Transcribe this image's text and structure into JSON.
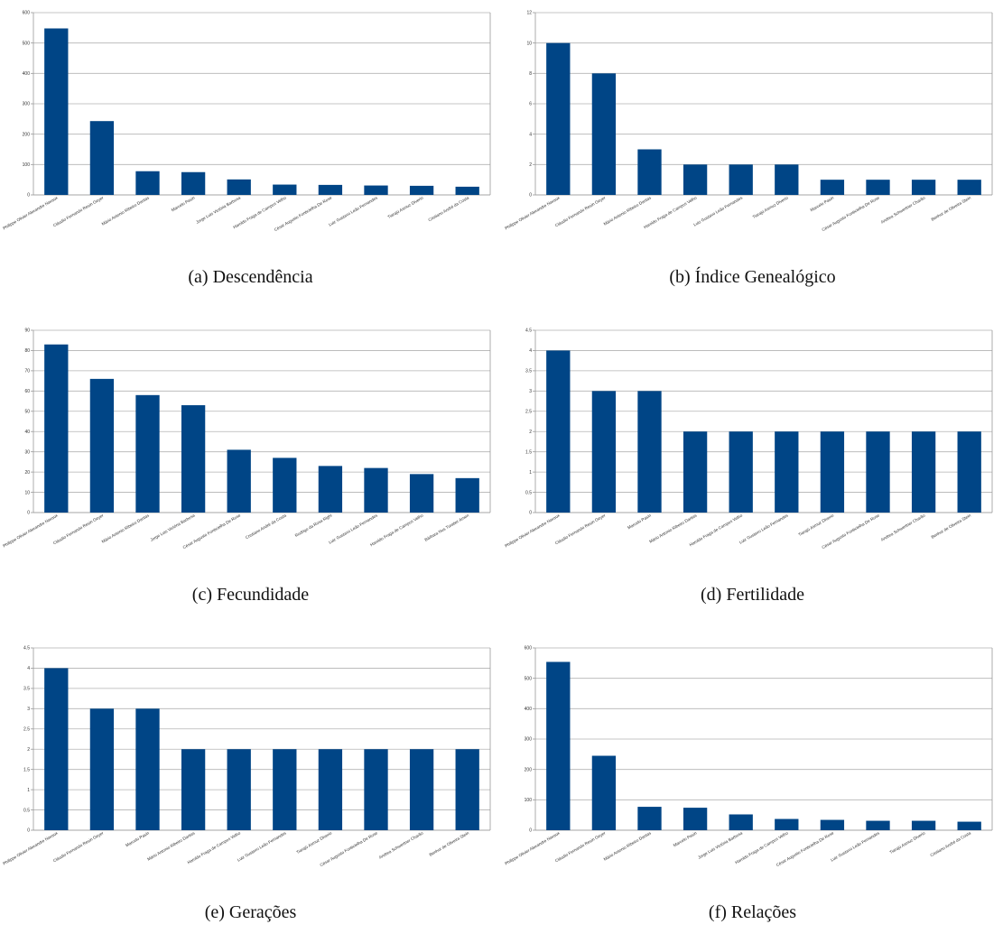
{
  "style": {
    "bar_color": "#004586",
    "grid_color": "#b3b3b3",
    "axis_color": "#999999"
  },
  "chart_data": [
    {
      "type": "bar",
      "caption": "(a) Descendência",
      "categories": [
        "Philippe Olivier Alexandre Navaux",
        "Cláudio Fernando Resin Geyer",
        "Mário Antonio Ribeiro Dantas",
        "Marcelo Pasin",
        "Jorge Luis Victória Barbosa",
        "Haroldo Fraga de Campos Velho",
        "César Augusto Fonticielha De Rose",
        "Luiz Gustavo Leão Fernandes",
        "Tiarajú Asmuz Diverio",
        "Cristiano André da Costa"
      ],
      "values": [
        548,
        243,
        78,
        75,
        51,
        34,
        33,
        31,
        30,
        27
      ],
      "ylim": [
        0,
        600
      ],
      "yticks": [
        0,
        100,
        200,
        300,
        400,
        500,
        600
      ]
    },
    {
      "type": "bar",
      "caption": "(b) Índice Genealógico",
      "categories": [
        "Philippe Olivier Alexandre Navaux",
        "Cláudio Fernando Resin Geyer",
        "Mário Antonio Ribeiro Dantas",
        "Haroldo Fraga de Campos Velho",
        "Luiz Gustavo Leão Fernandes",
        "Tiarajú Asmuz Diverio",
        "Marcelo Pasin",
        "César Augusto Fonticielha De Rose",
        "Andrea Schwertner Charão",
        "Benhur de Oliveira Stein"
      ],
      "values": [
        10,
        8,
        3,
        2,
        2,
        2,
        1,
        1,
        1,
        1
      ],
      "ylim": [
        0,
        12
      ],
      "yticks": [
        0,
        2,
        4,
        6,
        8,
        10,
        12
      ]
    },
    {
      "type": "bar",
      "caption": "(c) Fecundidade",
      "categories": [
        "Philippe Olivier Alexandre Navaux",
        "Cláudio Fernando Resin Geyer",
        "Mário Antonio Ribeiro Dantas",
        "Jorge Luis Victória Barbosa",
        "César Augusto Fonticielha De Rose",
        "Cristiano André da Costa",
        "Rodrigo da Rosa Righi",
        "Luiz Gustavo Leão Fernandes",
        "Haroldo Fraga de Campos Velho",
        "Bárbara Nus Turatier Amen"
      ],
      "values": [
        83,
        66,
        58,
        53,
        31,
        27,
        23,
        22,
        19,
        17
      ],
      "ylim": [
        0,
        90
      ],
      "yticks": [
        0,
        10,
        20,
        30,
        40,
        50,
        60,
        70,
        80,
        90
      ]
    },
    {
      "type": "bar",
      "caption": "(d) Fertilidade",
      "categories": [
        "Philippe Olivier Alexandre Navaux",
        "Cláudio Fernando Resin Geyer",
        "Marcelo Pasin",
        "Mário Antonio Ribeiro Dantas",
        "Haroldo Fraga de Campos Velho",
        "Luiz Gustavo Leão Fernandes",
        "Tiarajú Asmuz Diverio",
        "César Augusto Fonticielha De Rose",
        "Andrea Schwertner Charão",
        "Benhur de Oliveira Stein"
      ],
      "values": [
        4,
        3,
        3,
        2,
        2,
        2,
        2,
        2,
        2,
        2
      ],
      "ylim": [
        0,
        4.5
      ],
      "yticks": [
        0,
        0.5,
        1,
        1.5,
        2,
        2.5,
        3,
        3.5,
        4,
        4.5
      ]
    },
    {
      "type": "bar",
      "caption": "(e) Gerações",
      "categories": [
        "Philippe Olivier Alexandre Navaux",
        "Cláudio Fernando Resin Geyer",
        "Marcelo Pasin",
        "Mário Antonio Ribeiro Dantas",
        "Haroldo Fraga de Campos Velho",
        "Luiz Gustavo Leão Fernandes",
        "Tiarajú Asmuz Diverio",
        "César Augusto Fonticielha De Rose",
        "Andrea Schwertner Charão",
        "Benhur de Oliveira Stein"
      ],
      "values": [
        4,
        3,
        3,
        2,
        2,
        2,
        2,
        2,
        2,
        2
      ],
      "ylim": [
        0,
        4.5
      ],
      "yticks": [
        0,
        0.5,
        1,
        1.5,
        2,
        2.5,
        3,
        3.5,
        4,
        4.5
      ]
    },
    {
      "type": "bar",
      "caption": "(f) Relações",
      "categories": [
        "Philippe Olivier Alexandre Navaux",
        "Cláudio Fernando Resin Geyer",
        "Mário Antonio Ribeiro Dantas",
        "Marcelo Pasin",
        "Jorge Luis Victória Barbosa",
        "Haroldo Fraga de Campos Velho",
        "César Augusto Fonticielha De Rose",
        "Luiz Gustavo Leão Fernandes",
        "Tiarajú Asmuz Diverio",
        "Cristiano André da Costa"
      ],
      "values": [
        554,
        245,
        77,
        74,
        52,
        37,
        34,
        31,
        31,
        28
      ],
      "ylim": [
        0,
        600
      ],
      "yticks": [
        0,
        100,
        200,
        300,
        400,
        500,
        600
      ]
    }
  ]
}
